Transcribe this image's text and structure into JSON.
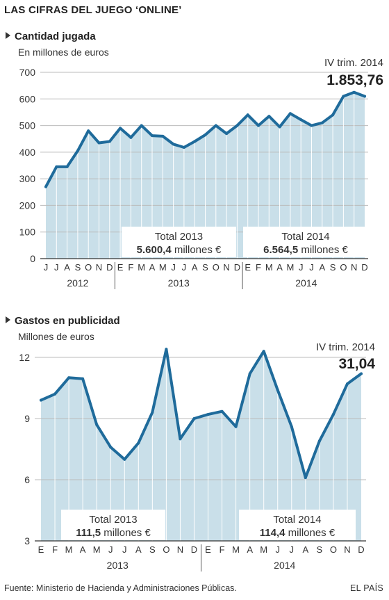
{
  "header": {
    "title": "LAS CIFRAS DEL JUEGO ‘ONLINE’"
  },
  "footer": {
    "source": "Fuente: Ministerio de Hacienda y Administraciones Públicas.",
    "brand": "EL PAÍS"
  },
  "colors": {
    "area": "#c9dfe9",
    "line": "#1f6b9b",
    "axis": "#333333",
    "grid": "#bbbbbb"
  },
  "chart_data": [
    {
      "type": "area",
      "title": "Cantidad jugada",
      "subtitle": "En millones de euros",
      "ylim": [
        0,
        700
      ],
      "yticks": [
        0,
        100,
        200,
        300,
        400,
        500,
        600,
        700
      ],
      "grid": true,
      "categories": [
        "J",
        "J",
        "A",
        "S",
        "O",
        "N",
        "D",
        "E",
        "F",
        "M",
        "A",
        "M",
        "J",
        "J",
        "A",
        "S",
        "O",
        "N",
        "D",
        "E",
        "F",
        "M",
        "A",
        "M",
        "J",
        "J",
        "A",
        "S",
        "O",
        "N",
        "D"
      ],
      "years": [
        {
          "label": "2012",
          "start": 0,
          "end": 6
        },
        {
          "label": "2013",
          "start": 7,
          "end": 18
        },
        {
          "label": "2014",
          "start": 19,
          "end": 30
        }
      ],
      "series": [
        {
          "values": [
            270,
            345,
            345,
            405,
            480,
            435,
            440,
            490,
            455,
            500,
            462,
            460,
            430,
            418,
            440,
            465,
            500,
            470,
            500,
            540,
            500,
            535,
            495,
            545,
            522,
            500,
            510,
            540,
            610,
            625,
            610
          ]
        }
      ],
      "annotations": {
        "last_label": "IV trim. 2014",
        "last_value": "1.853,76",
        "totals": [
          {
            "label": "Total 2013",
            "value": "5.600,4",
            "unit": "millones €"
          },
          {
            "label": "Total 2014",
            "value": "6.564,5",
            "unit": "millones €"
          }
        ]
      }
    },
    {
      "type": "area",
      "title": "Gastos en publicidad",
      "subtitle": "Millones de euros",
      "ylim": [
        3,
        12
      ],
      "yticks": [
        3,
        6,
        9,
        12
      ],
      "grid": true,
      "categories": [
        "E",
        "F",
        "M",
        "A",
        "M",
        "J",
        "J",
        "A",
        "S",
        "O",
        "N",
        "D",
        "E",
        "F",
        "M",
        "A",
        "M",
        "J",
        "J",
        "A",
        "S",
        "O",
        "N",
        "D"
      ],
      "years": [
        {
          "label": "2013",
          "start": 0,
          "end": 11
        },
        {
          "label": "2014",
          "start": 12,
          "end": 23
        }
      ],
      "series": [
        {
          "values": [
            9.9,
            10.2,
            11.0,
            10.95,
            8.7,
            7.6,
            7.0,
            7.8,
            9.3,
            12.4,
            8.0,
            9.0,
            9.2,
            9.35,
            8.6,
            11.2,
            12.3,
            10.4,
            8.6,
            6.1,
            7.9,
            9.2,
            10.7,
            11.2
          ]
        }
      ],
      "annotations": {
        "last_label": "IV trim. 2014",
        "last_value": "31,04",
        "totals": [
          {
            "label": "Total 2013",
            "value": "111,5",
            "unit": "millones €"
          },
          {
            "label": "Total 2014",
            "value": "114,4",
            "unit": "millones €"
          }
        ]
      }
    }
  ]
}
